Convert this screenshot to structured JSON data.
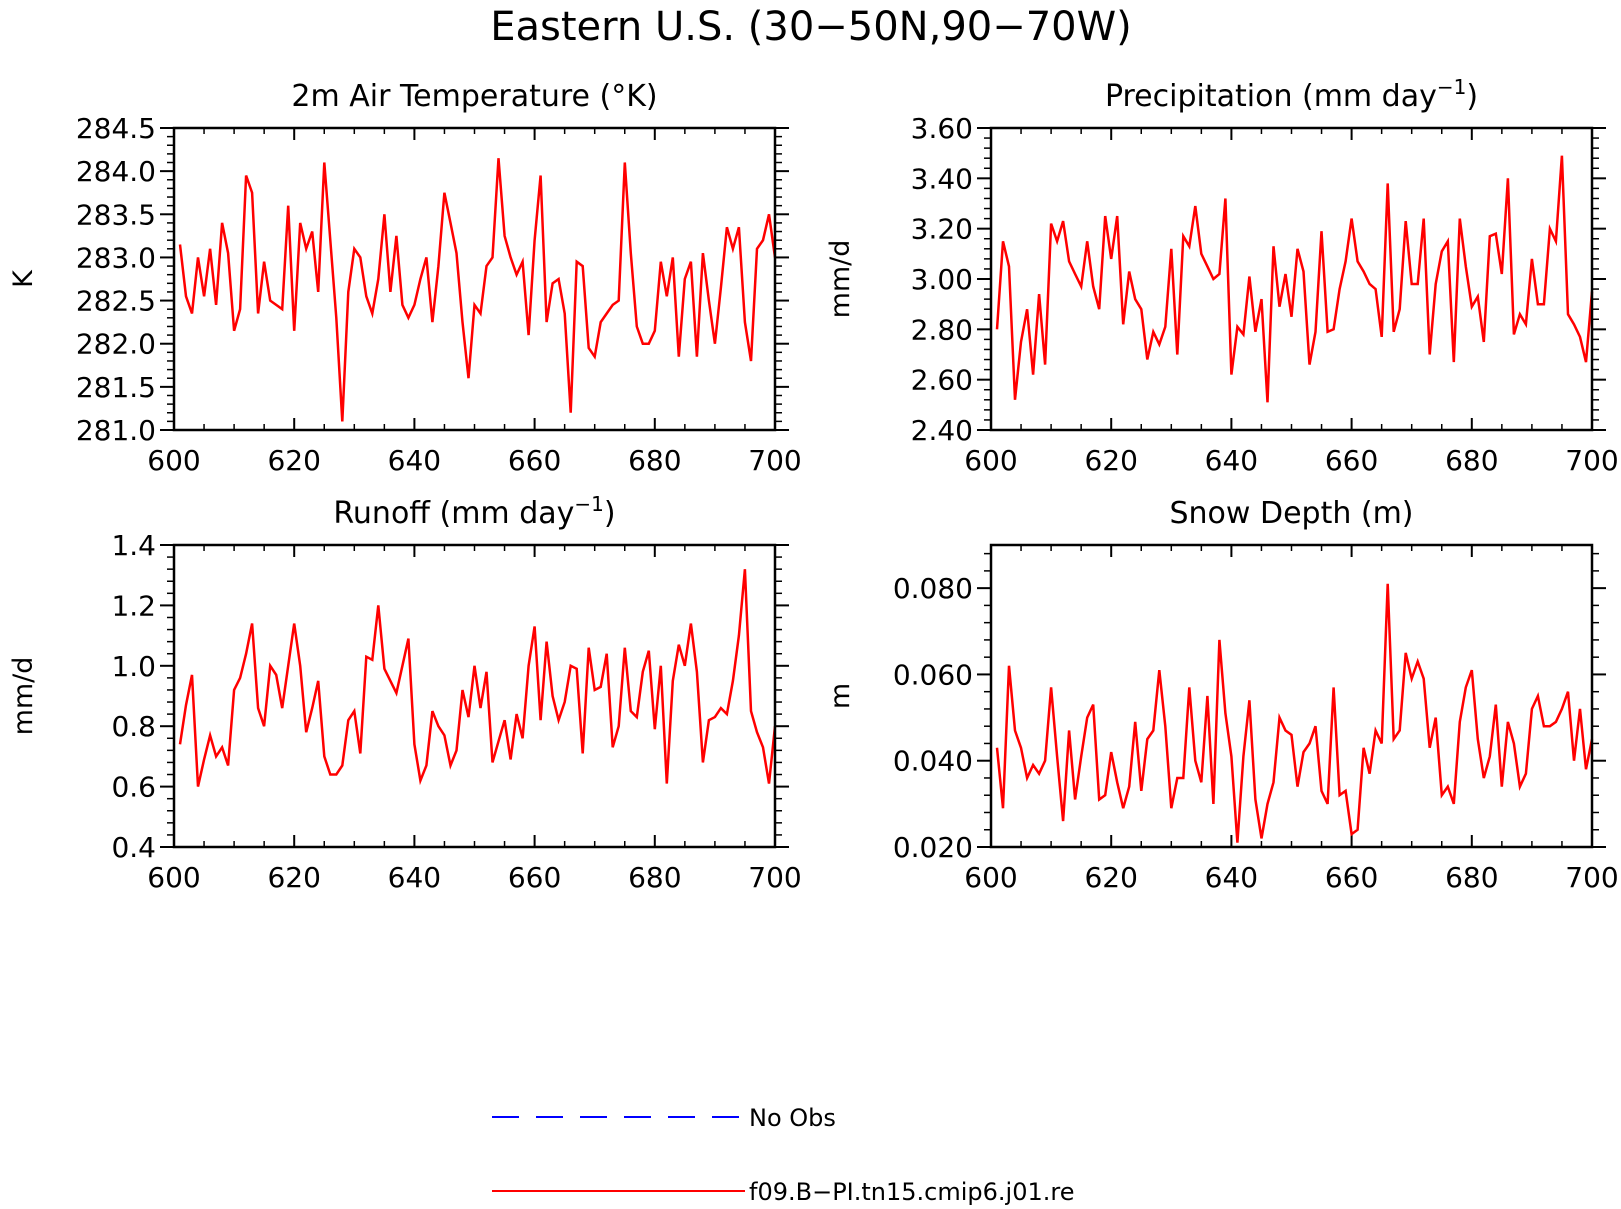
{
  "page": {
    "title": "Eastern U.S. (30−50N,90−70W)"
  },
  "legend": {
    "items": [
      {
        "label": "No Obs",
        "color": "#0000ff",
        "dashed": true
      },
      {
        "label": "f09.B−PI.tn15.cmip6.j01.re",
        "color": "#ff0000",
        "dashed": false
      }
    ]
  },
  "chart_data": [
    {
      "type": "line",
      "title": "2m Air Temperature (°K)",
      "ylabel": "K",
      "xlim": [
        600,
        700
      ],
      "ylim": [
        281.0,
        284.5
      ],
      "xticks": [
        "600",
        "620",
        "640",
        "660",
        "680",
        "700"
      ],
      "yticks": [
        "281.0",
        "281.5",
        "282.0",
        "282.5",
        "283.0",
        "283.5",
        "284.0",
        "284.5"
      ],
      "color": "#ff0000",
      "x_start": 601,
      "values": [
        283.15,
        282.55,
        282.35,
        283.0,
        282.55,
        283.1,
        282.45,
        283.4,
        283.05,
        282.15,
        282.4,
        283.95,
        283.75,
        282.35,
        282.95,
        282.5,
        282.45,
        282.4,
        283.6,
        282.15,
        283.4,
        283.1,
        283.3,
        282.6,
        284.1,
        283.2,
        282.3,
        281.1,
        282.6,
        283.1,
        283.0,
        282.55,
        282.35,
        282.75,
        283.5,
        282.6,
        283.25,
        282.45,
        282.3,
        282.45,
        282.75,
        283.0,
        282.25,
        282.9,
        283.75,
        283.4,
        283.05,
        282.25,
        281.6,
        282.45,
        282.35,
        282.9,
        283.0,
        284.15,
        283.25,
        283.0,
        282.8,
        282.95,
        282.1,
        283.2,
        283.95,
        282.25,
        282.7,
        282.75,
        282.35,
        281.2,
        282.95,
        282.9,
        281.95,
        281.85,
        282.25,
        282.35,
        282.45,
        282.5,
        284.1,
        283.05,
        282.2,
        282.0,
        282.0,
        282.15,
        282.95,
        282.55,
        283.0,
        281.85,
        282.75,
        282.95,
        281.85,
        283.05,
        282.5,
        282.0,
        282.65,
        283.35,
        283.1,
        283.35,
        282.25,
        281.8,
        283.1,
        283.2,
        283.5,
        283.0
      ]
    },
    {
      "type": "line",
      "title": "Precipitation (mm day",
      "title_sup": "−1",
      "title_end": ")",
      "ylabel": "mm/d",
      "xlim": [
        600,
        700
      ],
      "ylim": [
        2.4,
        3.6
      ],
      "xticks": [
        "600",
        "620",
        "640",
        "660",
        "680",
        "700"
      ],
      "yticks": [
        "2.40",
        "2.60",
        "2.80",
        "3.00",
        "3.20",
        "3.40",
        "3.60"
      ],
      "color": "#ff0000",
      "x_start": 601,
      "values": [
        2.8,
        3.15,
        3.05,
        2.52,
        2.75,
        2.88,
        2.62,
        2.94,
        2.66,
        3.22,
        3.15,
        3.23,
        3.07,
        3.02,
        2.97,
        3.15,
        2.97,
        2.88,
        3.25,
        3.08,
        3.25,
        2.82,
        3.03,
        2.92,
        2.88,
        2.68,
        2.79,
        2.74,
        2.81,
        3.12,
        2.7,
        3.17,
        3.13,
        3.29,
        3.1,
        3.05,
        3.0,
        3.02,
        3.32,
        2.62,
        2.81,
        2.78,
        3.01,
        2.79,
        2.92,
        2.51,
        3.13,
        2.89,
        3.02,
        2.85,
        3.12,
        3.03,
        2.66,
        2.79,
        3.19,
        2.79,
        2.8,
        2.96,
        3.07,
        3.24,
        3.07,
        3.03,
        2.98,
        2.96,
        2.77,
        3.38,
        2.79,
        2.88,
        3.23,
        2.98,
        2.98,
        3.24,
        2.7,
        2.98,
        3.11,
        3.15,
        2.67,
        3.24,
        3.05,
        2.89,
        2.93,
        2.75,
        3.17,
        3.18,
        3.02,
        3.4,
        2.78,
        2.86,
        2.82,
        3.08,
        2.9,
        2.9,
        3.2,
        3.15,
        3.49,
        2.86,
        2.82,
        2.77,
        2.67,
        2.95
      ]
    },
    {
      "type": "line",
      "title": "Runoff (mm day",
      "title_sup": "−1",
      "title_end": ")",
      "ylabel": "mm/d",
      "xlim": [
        600,
        700
      ],
      "ylim": [
        0.4,
        1.4
      ],
      "xticks": [
        "600",
        "620",
        "640",
        "660",
        "680",
        "700"
      ],
      "yticks": [
        "0.4",
        "0.6",
        "0.8",
        "1.0",
        "1.2",
        "1.4"
      ],
      "color": "#ff0000",
      "x_start": 601,
      "values": [
        0.74,
        0.87,
        0.97,
        0.6,
        0.69,
        0.77,
        0.7,
        0.73,
        0.67,
        0.92,
        0.96,
        1.04,
        1.14,
        0.86,
        0.8,
        1.0,
        0.97,
        0.86,
        1.0,
        1.14,
        1.0,
        0.78,
        0.86,
        0.95,
        0.7,
        0.64,
        0.64,
        0.67,
        0.82,
        0.85,
        0.71,
        1.03,
        1.02,
        1.2,
        0.99,
        0.95,
        0.91,
        1.0,
        1.09,
        0.74,
        0.62,
        0.67,
        0.85,
        0.8,
        0.77,
        0.67,
        0.72,
        0.92,
        0.83,
        1.0,
        0.86,
        0.98,
        0.68,
        0.75,
        0.82,
        0.69,
        0.84,
        0.76,
        1.0,
        1.13,
        0.82,
        1.08,
        0.9,
        0.82,
        0.88,
        1.0,
        0.99,
        0.71,
        1.06,
        0.92,
        0.93,
        1.04,
        0.73,
        0.8,
        1.06,
        0.85,
        0.83,
        0.98,
        1.05,
        0.79,
        1.0,
        0.61,
        0.95,
        1.07,
        1.0,
        1.14,
        0.98,
        0.68,
        0.82,
        0.83,
        0.86,
        0.84,
        0.95,
        1.1,
        1.32,
        0.85,
        0.78,
        0.73,
        0.61,
        0.8
      ]
    },
    {
      "type": "line",
      "title": "Snow Depth (m)",
      "ylabel": "m",
      "xlim": [
        600,
        700
      ],
      "ylim": [
        0.02,
        0.09
      ],
      "xticks": [
        "600",
        "620",
        "640",
        "660",
        "680",
        "700"
      ],
      "yticks": [
        "0.020",
        "0.040",
        "0.060",
        "0.080"
      ],
      "ytick_values": [
        0.02,
        0.04,
        0.06,
        0.08
      ],
      "color": "#ff0000",
      "x_start": 601,
      "values": [
        0.043,
        0.029,
        0.062,
        0.047,
        0.043,
        0.036,
        0.039,
        0.037,
        0.04,
        0.057,
        0.041,
        0.026,
        0.047,
        0.031,
        0.041,
        0.05,
        0.053,
        0.031,
        0.032,
        0.042,
        0.035,
        0.029,
        0.034,
        0.049,
        0.033,
        0.045,
        0.047,
        0.061,
        0.048,
        0.029,
        0.036,
        0.036,
        0.057,
        0.04,
        0.035,
        0.055,
        0.03,
        0.068,
        0.051,
        0.041,
        0.021,
        0.041,
        0.054,
        0.031,
        0.022,
        0.03,
        0.035,
        0.05,
        0.047,
        0.046,
        0.034,
        0.042,
        0.044,
        0.048,
        0.033,
        0.03,
        0.057,
        0.032,
        0.033,
        0.023,
        0.024,
        0.043,
        0.037,
        0.047,
        0.044,
        0.081,
        0.045,
        0.047,
        0.065,
        0.059,
        0.063,
        0.059,
        0.043,
        0.05,
        0.032,
        0.034,
        0.03,
        0.049,
        0.057,
        0.061,
        0.045,
        0.036,
        0.041,
        0.053,
        0.034,
        0.049,
        0.044,
        0.034,
        0.037,
        0.052,
        0.055,
        0.048,
        0.048,
        0.049,
        0.052,
        0.056,
        0.04,
        0.052,
        0.038,
        0.045
      ]
    }
  ]
}
